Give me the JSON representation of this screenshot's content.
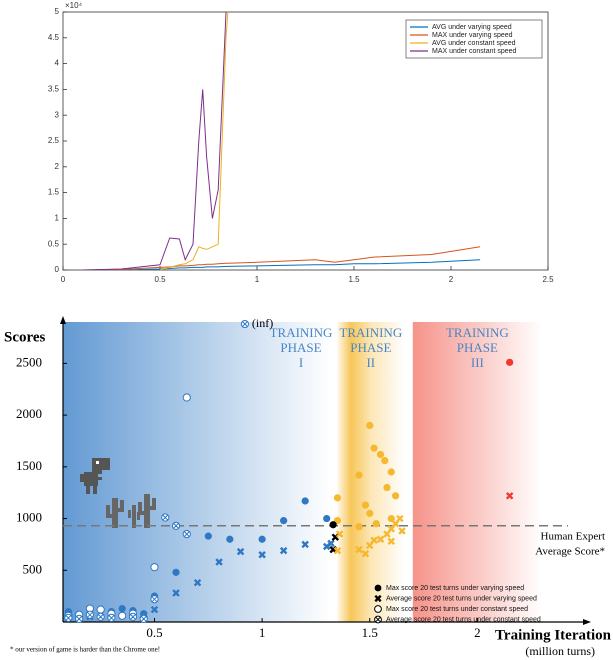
{
  "chart_data": [
    {
      "type": "line",
      "exponent_label": "×10⁴",
      "x": [
        0.1,
        0.3,
        0.5,
        0.55,
        0.6,
        0.63,
        0.67,
        0.7,
        0.72,
        0.74,
        0.77,
        0.8,
        0.84,
        0.85,
        1.0,
        1.3,
        1.4,
        1.5,
        1.6,
        1.9,
        2.15
      ],
      "series": [
        {
          "name": "AVG under varying speed",
          "color": "#0072bd",
          "values": [
            0,
            0,
            0.02,
            0.03,
            0.04,
            0.04,
            0.05,
            0.05,
            0.05,
            0.06,
            0.06,
            0.06,
            0.07,
            0.07,
            0.08,
            0.1,
            0.1,
            0.12,
            0.12,
            0.15,
            0.2
          ]
        },
        {
          "name": "MAX under varying speed",
          "color": "#d95319",
          "values": [
            0,
            0.01,
            0.05,
            0.06,
            0.08,
            0.08,
            0.09,
            0.1,
            0.1,
            0.11,
            0.11,
            0.12,
            0.13,
            0.13,
            0.15,
            0.2,
            0.15,
            0.2,
            0.25,
            0.3,
            0.45
          ]
        },
        {
          "name": "AVG under constant speed",
          "color": "#edb120",
          "values": [
            null,
            null,
            0,
            0.05,
            0.1,
            0.12,
            0.2,
            0.45,
            0.42,
            0.4,
            0.45,
            0.5,
            4.5,
            5,
            null,
            null,
            null,
            null,
            null,
            null,
            null
          ]
        },
        {
          "name": "MAX under constant speed",
          "color": "#7e2f8e",
          "values": [
            0,
            0.02,
            0.1,
            0.62,
            0.6,
            0.2,
            0.5,
            2.5,
            3.5,
            2.2,
            1.0,
            1.55,
            5,
            null,
            null,
            null,
            null,
            null,
            null,
            null,
            null
          ]
        }
      ],
      "xlim": [
        0,
        2.5
      ],
      "xticks": [
        0,
        0.5,
        1,
        1.5,
        2,
        2.5
      ],
      "ylim": [
        0,
        5
      ],
      "yticks": [
        0,
        0.5,
        1,
        1.5,
        2,
        2.5,
        3,
        3.5,
        4,
        4.5,
        5
      ],
      "legend": "upper right"
    },
    {
      "type": "scatter",
      "y_label": "Scores",
      "x_label": "Training Iteration",
      "x_sublabel": "(million turns)",
      "xlim": [
        0.075,
        2.5
      ],
      "xticks": [
        0.5,
        1,
        1.5,
        2
      ],
      "ylim": [
        0,
        2900
      ],
      "yticks": [
        500,
        1000,
        1500,
        2000,
        2500
      ],
      "phases": [
        {
          "label": [
            "TRAINING",
            "PHASE",
            "I"
          ],
          "range": [
            0.075,
            1.32
          ],
          "color": "#2f78c4"
        },
        {
          "label": [
            "TRAINING",
            "PHASE",
            "II"
          ],
          "range": [
            1.35,
            1.66
          ],
          "color": "#f5b82e"
        },
        {
          "label": [
            "TRAINING",
            "PHASE",
            "III"
          ],
          "range": [
            1.7,
            2.3
          ],
          "color": "#ee3b2a"
        }
      ],
      "phase_label_color": "#4a86c5",
      "reference_line": {
        "value": 930,
        "label": [
          "Human Expert",
          "Average Score*"
        ]
      },
      "annotation": "(inf)",
      "footnote": "* our version of game is harder than the Chrome one!",
      "series": [
        {
          "name": "Max score 20 test turns under varying  speed",
          "marker": "filled-circle",
          "x": [
            0.1,
            0.15,
            0.2,
            0.3,
            0.35,
            0.4,
            0.45,
            0.5,
            0.6,
            0.75,
            0.85,
            1.0,
            1.1,
            1.2,
            1.3,
            1.35,
            1.35,
            1.33,
            1.45,
            1.5,
            1.52,
            1.55,
            1.48,
            1.5,
            1.57,
            1.6,
            1.62,
            1.58,
            1.45,
            1.53,
            1.6,
            2.15
          ],
          "values": [
            100,
            50,
            80,
            100,
            130,
            110,
            80,
            250,
            480,
            830,
            800,
            800,
            980,
            1170,
            1000,
            1200,
            980,
            940,
            1420,
            1900,
            1680,
            1620,
            1130,
            1050,
            1560,
            1450,
            1220,
            1300,
            920,
            950,
            1000,
            2510
          ]
        },
        {
          "name": "Average score 20 test turns under varying  speed",
          "marker": "cross",
          "x": [
            0.1,
            0.2,
            0.3,
            0.4,
            0.5,
            0.6,
            0.7,
            0.8,
            0.9,
            1.0,
            1.1,
            1.2,
            1.3,
            1.33,
            1.35,
            1.32,
            1.34,
            1.36,
            1.45,
            1.48,
            1.5,
            1.52,
            1.55,
            1.58,
            1.6,
            1.62,
            1.64,
            1.6,
            1.65,
            2.15
          ],
          "values": [
            40,
            50,
            60,
            70,
            120,
            280,
            380,
            580,
            680,
            650,
            690,
            750,
            730,
            700,
            690,
            760,
            820,
            850,
            700,
            660,
            740,
            790,
            800,
            850,
            900,
            950,
            1000,
            780,
            880,
            1220
          ]
        },
        {
          "name": "Max score 20 test turns under constant speed",
          "marker": "open-circle",
          "x": [
            0.1,
            0.15,
            0.2,
            0.25,
            0.3,
            0.35,
            0.4,
            0.45,
            0.5,
            0.65
          ],
          "values": [
            60,
            70,
            130,
            120,
            80,
            60,
            80,
            40,
            530,
            2170
          ]
        },
        {
          "name": "Average score 20 test turns under constant speed",
          "marker": "circle-cross",
          "x": [
            0.1,
            0.15,
            0.2,
            0.25,
            0.3,
            0.4,
            0.45,
            0.5,
            0.55,
            0.6,
            0.65,
            0.92
          ],
          "values": [
            40,
            30,
            70,
            50,
            40,
            50,
            30,
            220,
            1010,
            930,
            850,
            2880
          ]
        }
      ],
      "legend_color": "#000000"
    }
  ]
}
